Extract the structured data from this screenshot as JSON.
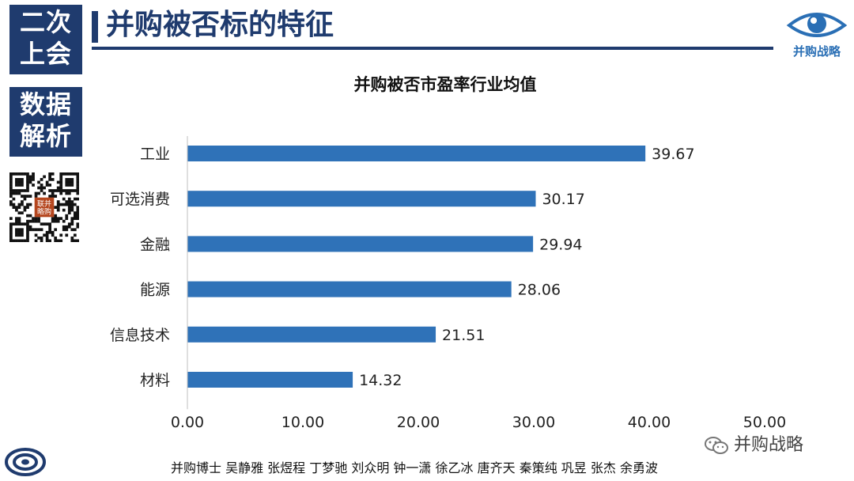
{
  "sidebar": {
    "block1": [
      "二次",
      "上会"
    ],
    "block2": [
      "数据",
      "解析"
    ],
    "qr_label": [
      "联并",
      "略购"
    ]
  },
  "header": {
    "title": "并购被否标的特征",
    "brand_text": "并购战略"
  },
  "colors": {
    "navy": "#1f3b6e",
    "bar": "#2f72b8",
    "brand": "#2a6fb5"
  },
  "chart_data": {
    "type": "bar",
    "orientation": "horizontal",
    "title": "并购被否市盈率行业均值",
    "categories": [
      "工业",
      "可选消费",
      "金融",
      "能源",
      "信息技术",
      "材料"
    ],
    "values": [
      39.67,
      30.17,
      29.94,
      28.06,
      21.51,
      14.32
    ],
    "value_labels": [
      "39.67",
      "30.17",
      "29.94",
      "28.06",
      "21.51",
      "14.32"
    ],
    "xticks": [
      "0.00",
      "10.00",
      "20.00",
      "30.00",
      "40.00",
      "50.00"
    ],
    "xlim": [
      0,
      50
    ],
    "grid": false,
    "legend": false
  },
  "footer": {
    "wechat": "并购战略",
    "authors": "并购博士 吴静雅 张煜程 丁梦驰 刘众明 钟一潇 徐乙冰 唐齐天 秦策纯 巩昱 张杰 余勇波"
  }
}
